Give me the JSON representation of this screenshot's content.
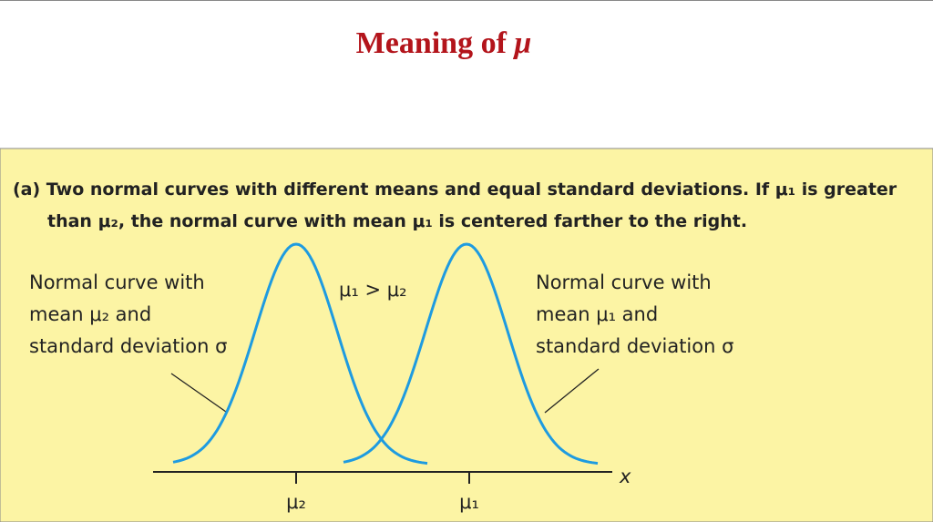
{
  "title": {
    "text": "Meaning of",
    "symbol": "μ"
  },
  "caption": {
    "lines": [
      "(a) Two normal curves with different means and equal standard deviations.  If μ₁ is greater",
      "than μ₂, the normal curve with mean μ₁ is centered farther to the right."
    ]
  },
  "left_label": {
    "lines": [
      "Normal curve with",
      "mean μ₂ and",
      "standard deviation σ"
    ]
  },
  "right_label": {
    "lines": [
      "Normal curve with",
      "mean μ₁ and",
      "standard deviation σ"
    ]
  },
  "comparison": "μ₁ > μ₂",
  "axis": {
    "label": "x",
    "ticks": [
      "μ₂",
      "μ₁"
    ]
  }
}
